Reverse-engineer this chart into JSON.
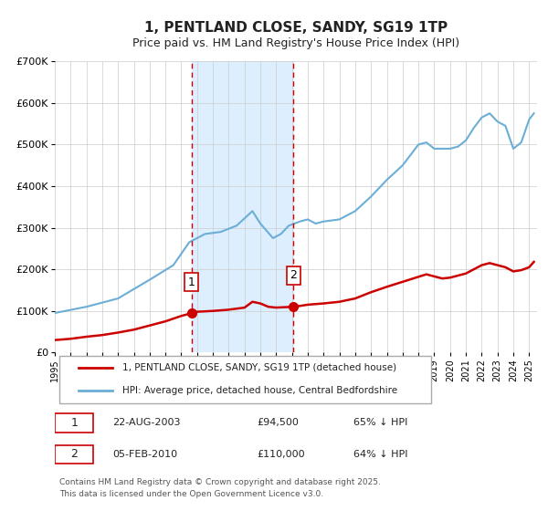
{
  "title": "1, PENTLAND CLOSE, SANDY, SG19 1TP",
  "subtitle": "Price paid vs. HM Land Registry's House Price Index (HPI)",
  "legend_entry1": "1, PENTLAND CLOSE, SANDY, SG19 1TP (detached house)",
  "legend_entry2": "HPI: Average price, detached house, Central Bedfordshire",
  "marker1_date": "22-AUG-2003",
  "marker1_price": 94500,
  "marker1_pct": "65% ↓ HPI",
  "marker2_date": "05-FEB-2010",
  "marker2_price": 110000,
  "marker2_pct": "64% ↓ HPI",
  "footer": "Contains HM Land Registry data © Crown copyright and database right 2025.\nThis data is licensed under the Open Government Licence v3.0.",
  "hpi_color": "#6baed6",
  "price_color": "#cc0000",
  "marker_color": "#cc0000",
  "shaded_color": "#ddeeff",
  "vline_color": "#cc0000",
  "background_color": "#ffffff",
  "grid_color": "#cccccc",
  "ylim": [
    0,
    700000
  ],
  "yticks": [
    0,
    100000,
    200000,
    300000,
    400000,
    500000,
    600000,
    700000
  ],
  "ytick_labels": [
    "£0",
    "£100K",
    "£200K",
    "£300K",
    "£400K",
    "£500K",
    "£600K",
    "£700K"
  ],
  "xlim_start": 1995.0,
  "xlim_end": 2025.5,
  "xticks": [
    1995,
    1996,
    1997,
    1998,
    1999,
    2000,
    2001,
    2002,
    2003,
    2004,
    2005,
    2006,
    2007,
    2008,
    2009,
    2010,
    2011,
    2012,
    2013,
    2014,
    2015,
    2016,
    2017,
    2018,
    2019,
    2020,
    2021,
    2022,
    2023,
    2024,
    2025
  ]
}
